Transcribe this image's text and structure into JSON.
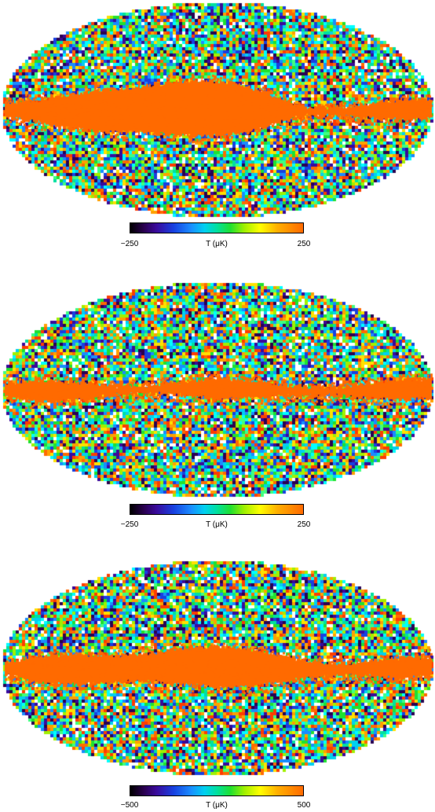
{
  "panels": [
    {
      "colorbar": {
        "min_label": "−250",
        "unit_label": "T (μK)",
        "max_label": "250"
      },
      "band": {
        "seed": 11,
        "bulge_left": 110,
        "bulge_right": 235,
        "bulge_height": 26
      }
    },
    {
      "colorbar": {
        "min_label": "−250",
        "unit_label": "T (μK)",
        "max_label": "250"
      },
      "band": {
        "seed": 27,
        "bulge_left": 0,
        "bulge_right": 0,
        "bulge_height": 0
      }
    },
    {
      "colorbar": {
        "min_label": "−500",
        "unit_label": "T (μK)",
        "max_label": "500"
      },
      "band": {
        "seed": 53,
        "bulge_left": 180,
        "bulge_right": 260,
        "bulge_height": 14
      }
    }
  ],
  "colors": {
    "band": "#ff6a00",
    "palette": [
      "#ff6a00",
      "#ffa000",
      "#ffe000",
      "#a0f000",
      "#20e030",
      "#00e0a0",
      "#00d0f0",
      "#1a8cff",
      "#1840e0",
      "#3a0a9a",
      "#2a0050",
      "#ffffff",
      "#ff3c00",
      "#40ff80",
      "#00ffff"
    ]
  }
}
